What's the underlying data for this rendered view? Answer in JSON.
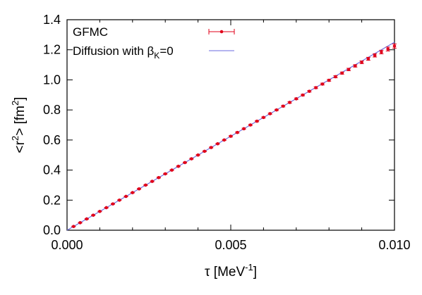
{
  "chart_data": {
    "type": "scatter",
    "xlim": [
      0.0,
      0.01
    ],
    "ylim": [
      0.0,
      1.4
    ],
    "x_ticks": [
      0.0,
      0.005,
      0.01
    ],
    "x_tick_labels": [
      "0.000",
      "0.005",
      "0.010"
    ],
    "y_ticks": [
      0.0,
      0.2,
      0.4,
      0.6,
      0.8,
      1.0,
      1.2,
      1.4
    ],
    "y_tick_labels": [
      "0.0",
      "0.2",
      "0.4",
      "0.6",
      "0.8",
      "1.0",
      "1.2",
      "1.4"
    ],
    "xlabel": {
      "base": "τ [MeV",
      "sup": "-1",
      "tail": "]"
    },
    "ylabel": {
      "base": "<r",
      "sup": "2",
      "mid": "> [fm",
      "sup2": "2",
      "tail": "]"
    },
    "grid": false,
    "legend_position": "top-left",
    "series": [
      {
        "name": "GFMC",
        "kind": "points-with-errorbars",
        "color": "#e0001a",
        "x": [
          0.0002,
          0.0004,
          0.0006,
          0.0008,
          0.001,
          0.0012,
          0.0014,
          0.0016,
          0.0018,
          0.002,
          0.0022,
          0.0024,
          0.0026,
          0.0028,
          0.003,
          0.0032,
          0.0034,
          0.0036,
          0.0038,
          0.004,
          0.0042,
          0.0044,
          0.0046,
          0.0048,
          0.005,
          0.0052,
          0.0054,
          0.0056,
          0.0058,
          0.006,
          0.0062,
          0.0064,
          0.0066,
          0.0068,
          0.007,
          0.0072,
          0.0074,
          0.0076,
          0.0078,
          0.008,
          0.0082,
          0.0084,
          0.0086,
          0.0088,
          0.009,
          0.0092,
          0.0094,
          0.0096,
          0.0098,
          0.01
        ],
        "y": [
          0.025,
          0.05,
          0.075,
          0.1,
          0.125,
          0.15,
          0.175,
          0.2,
          0.225,
          0.25,
          0.275,
          0.3,
          0.325,
          0.35,
          0.375,
          0.4,
          0.425,
          0.45,
          0.475,
          0.5,
          0.525,
          0.55,
          0.575,
          0.6,
          0.625,
          0.65,
          0.675,
          0.7,
          0.725,
          0.75,
          0.775,
          0.8,
          0.825,
          0.85,
          0.874,
          0.899,
          0.924,
          0.948,
          0.972,
          0.997,
          1.021,
          1.045,
          1.069,
          1.093,
          1.117,
          1.14,
          1.163,
          1.185,
          1.205,
          1.225
        ],
        "yerr": [
          0.002,
          0.002,
          0.002,
          0.002,
          0.002,
          0.002,
          0.002,
          0.002,
          0.002,
          0.002,
          0.003,
          0.003,
          0.003,
          0.003,
          0.003,
          0.003,
          0.003,
          0.003,
          0.003,
          0.003,
          0.003,
          0.003,
          0.003,
          0.003,
          0.004,
          0.004,
          0.004,
          0.004,
          0.004,
          0.004,
          0.004,
          0.004,
          0.005,
          0.005,
          0.005,
          0.005,
          0.005,
          0.006,
          0.006,
          0.006,
          0.007,
          0.007,
          0.008,
          0.008,
          0.009,
          0.01,
          0.011,
          0.012,
          0.013,
          0.014
        ]
      },
      {
        "name": "Diffusion with β",
        "name_sub": "K",
        "name_tail": "=0",
        "kind": "line",
        "color": "#6a6adf",
        "x": [
          0.0,
          0.01
        ],
        "y": [
          0.0,
          1.25
        ]
      }
    ]
  }
}
